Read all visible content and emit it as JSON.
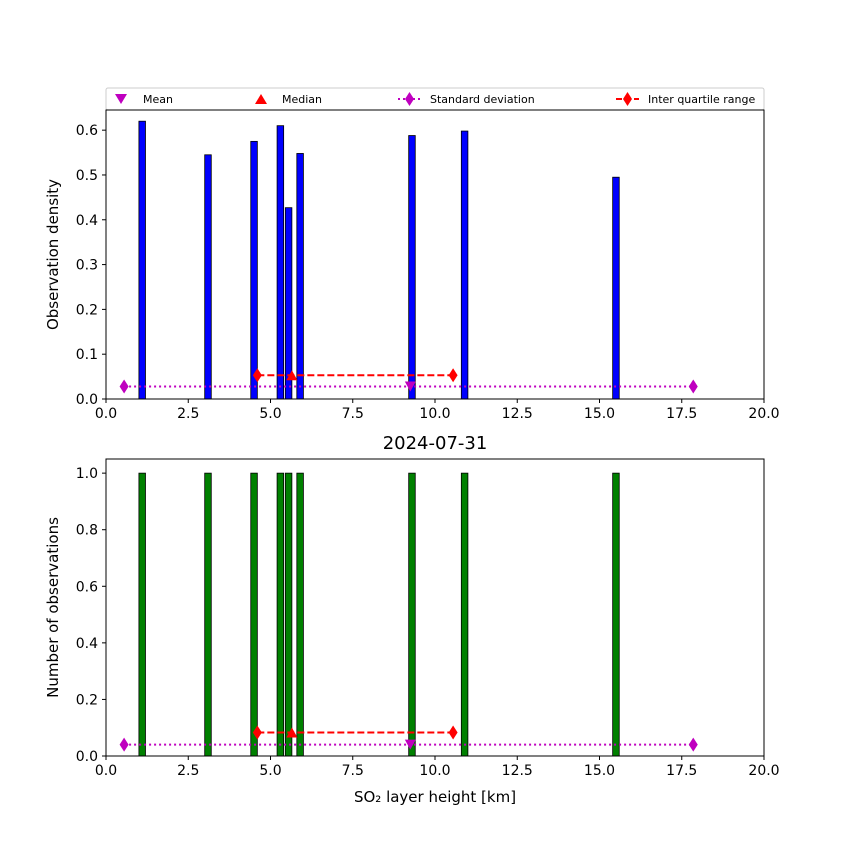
{
  "legend": {
    "items": [
      {
        "label": "Mean",
        "marker": "triangle-down",
        "color": "#bf00bf"
      },
      {
        "label": "Median",
        "marker": "triangle-up",
        "color": "#ff0000"
      },
      {
        "label": "Standard deviation",
        "marker": "diamond",
        "line": "dotted",
        "color": "#bf00bf"
      },
      {
        "label": "Inter quartile range",
        "marker": "diamond",
        "line": "dashed",
        "color": "#ff0000"
      }
    ]
  },
  "chart_data": [
    {
      "type": "bar",
      "title": "",
      "xlabel": "",
      "ylabel": "Observation density",
      "xlim": [
        0,
        20
      ],
      "ylim": [
        0,
        0.645
      ],
      "xticks": [
        0,
        2.5,
        5,
        7.5,
        10,
        12.5,
        15,
        17.5,
        20
      ],
      "xtick_labels": [
        "0.0",
        "2.5",
        "5.0",
        "7.5",
        "10.0",
        "12.5",
        "15.0",
        "17.5",
        "20.0"
      ],
      "yticks": [
        0,
        0.1,
        0.2,
        0.3,
        0.4,
        0.5,
        0.6
      ],
      "ytick_labels": [
        "0.0",
        "0.1",
        "0.2",
        "0.3",
        "0.4",
        "0.5",
        "0.6"
      ],
      "bar_color": "#0000ff",
      "bar_width": 0.2,
      "bars": [
        {
          "x": 1.1,
          "value": 0.62
        },
        {
          "x": 3.1,
          "value": 0.545
        },
        {
          "x": 4.5,
          "value": 0.575
        },
        {
          "x": 5.3,
          "value": 0.61
        },
        {
          "x": 5.55,
          "value": 0.427
        },
        {
          "x": 5.9,
          "value": 0.548
        },
        {
          "x": 9.3,
          "value": 0.588
        },
        {
          "x": 10.9,
          "value": 0.598
        },
        {
          "x": 15.5,
          "value": 0.495
        }
      ],
      "mean": {
        "x": 9.25,
        "y": 0.028
      },
      "median": {
        "x": 5.65,
        "y": 0.053
      },
      "std_range": {
        "x": [
          0.55,
          17.85
        ],
        "y": 0.028
      },
      "iqr": {
        "x": [
          4.6,
          10.55
        ],
        "y": 0.053
      }
    },
    {
      "type": "bar",
      "title": "2024-07-31",
      "xlabel": "SO₂ layer height [km]",
      "ylabel": "Number of observations",
      "xlim": [
        0,
        20
      ],
      "ylim": [
        0,
        1.05
      ],
      "xticks": [
        0,
        2.5,
        5,
        7.5,
        10,
        12.5,
        15,
        17.5,
        20
      ],
      "xtick_labels": [
        "0.0",
        "2.5",
        "5.0",
        "7.5",
        "10.0",
        "12.5",
        "15.0",
        "17.5",
        "20.0"
      ],
      "yticks": [
        0,
        0.2,
        0.4,
        0.6,
        0.8,
        1.0
      ],
      "ytick_labels": [
        "0.0",
        "0.2",
        "0.4",
        "0.6",
        "0.8",
        "1.0"
      ],
      "bar_color": "#008000",
      "bar_width": 0.2,
      "bars": [
        {
          "x": 1.1,
          "value": 1
        },
        {
          "x": 3.1,
          "value": 1
        },
        {
          "x": 4.5,
          "value": 1
        },
        {
          "x": 5.3,
          "value": 1
        },
        {
          "x": 5.55,
          "value": 1
        },
        {
          "x": 5.9,
          "value": 1
        },
        {
          "x": 9.3,
          "value": 1
        },
        {
          "x": 10.9,
          "value": 1
        },
        {
          "x": 15.5,
          "value": 1
        }
      ],
      "mean": {
        "x": 9.25,
        "y": 0.04
      },
      "median": {
        "x": 5.65,
        "y": 0.083
      },
      "std_range": {
        "x": [
          0.55,
          17.85
        ],
        "y": 0.04
      },
      "iqr": {
        "x": [
          4.6,
          10.55
        ],
        "y": 0.083
      }
    }
  ]
}
